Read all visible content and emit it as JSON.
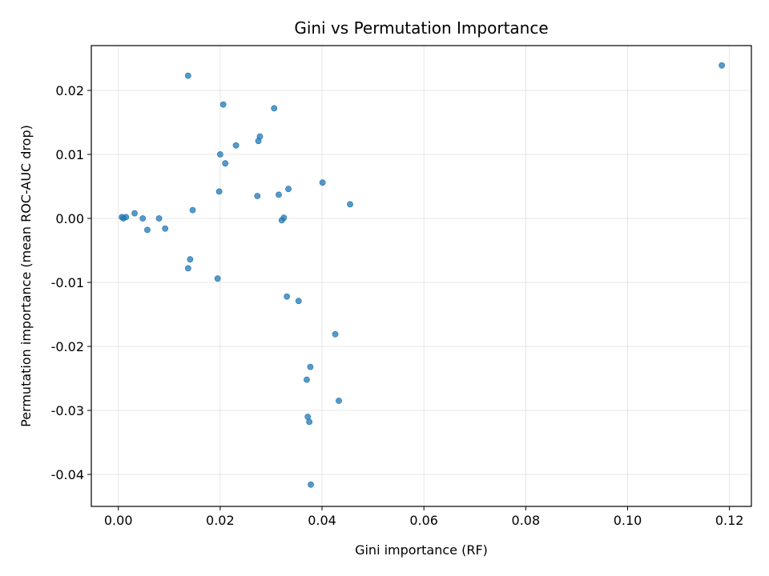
{
  "chart_data": {
    "type": "scatter",
    "title": "Gini vs Permutation Importance",
    "xlabel": "Gini importance (RF)",
    "ylabel": "Permutation importance (mean ROC-AUC drop)",
    "xlim": [
      -0.0053,
      0.1243
    ],
    "ylim": [
      -0.045,
      0.027
    ],
    "grid": true,
    "marker_color": "#1f77b4",
    "x_ticks": [
      0.0,
      0.02,
      0.04,
      0.06,
      0.08,
      0.1,
      0.12
    ],
    "x_tick_labels": [
      "0.00",
      "0.02",
      "0.04",
      "0.06",
      "0.08",
      "0.10",
      "0.12"
    ],
    "y_ticks": [
      -0.04,
      -0.03,
      -0.02,
      -0.01,
      0.0,
      0.01,
      0.02
    ],
    "y_tick_labels": [
      "-0.04",
      "-0.03",
      "-0.02",
      "-0.01",
      "0.00",
      "0.01",
      "0.02"
    ],
    "points": [
      {
        "x": 0.1185,
        "y": 0.0239
      },
      {
        "x": 0.0137,
        "y": 0.0223
      },
      {
        "x": 0.0206,
        "y": 0.0178
      },
      {
        "x": 0.0306,
        "y": 0.0172
      },
      {
        "x": 0.0278,
        "y": 0.0128
      },
      {
        "x": 0.0275,
        "y": 0.0121
      },
      {
        "x": 0.0231,
        "y": 0.0114
      },
      {
        "x": 0.02,
        "y": 0.01
      },
      {
        "x": 0.021,
        "y": 0.0086
      },
      {
        "x": 0.0401,
        "y": 0.0056
      },
      {
        "x": 0.0334,
        "y": 0.0046
      },
      {
        "x": 0.0198,
        "y": 0.0042
      },
      {
        "x": 0.0315,
        "y": 0.0037
      },
      {
        "x": 0.0273,
        "y": 0.0035
      },
      {
        "x": 0.0455,
        "y": 0.0022
      },
      {
        "x": 0.0146,
        "y": 0.0013
      },
      {
        "x": 0.0032,
        "y": 0.0008
      },
      {
        "x": 0.0007,
        "y": 0.0002
      },
      {
        "x": 0.0015,
        "y": 0.0002
      },
      {
        "x": 0.001,
        "y": 0.0
      },
      {
        "x": 0.0048,
        "y": 0.0
      },
      {
        "x": 0.008,
        "y": 0.0
      },
      {
        "x": 0.0325,
        "y": 0.0001
      },
      {
        "x": 0.0321,
        "y": -0.0003
      },
      {
        "x": 0.0057,
        "y": -0.0018
      },
      {
        "x": 0.0092,
        "y": -0.0016
      },
      {
        "x": 0.0141,
        "y": -0.0064
      },
      {
        "x": 0.0137,
        "y": -0.0078
      },
      {
        "x": 0.0195,
        "y": -0.0094
      },
      {
        "x": 0.0331,
        "y": -0.0122
      },
      {
        "x": 0.0354,
        "y": -0.0129
      },
      {
        "x": 0.0426,
        "y": -0.0181
      },
      {
        "x": 0.0377,
        "y": -0.0232
      },
      {
        "x": 0.037,
        "y": -0.0252
      },
      {
        "x": 0.0433,
        "y": -0.0285
      },
      {
        "x": 0.0372,
        "y": -0.031
      },
      {
        "x": 0.0375,
        "y": -0.0318
      },
      {
        "x": 0.0378,
        "y": -0.0416
      }
    ]
  }
}
